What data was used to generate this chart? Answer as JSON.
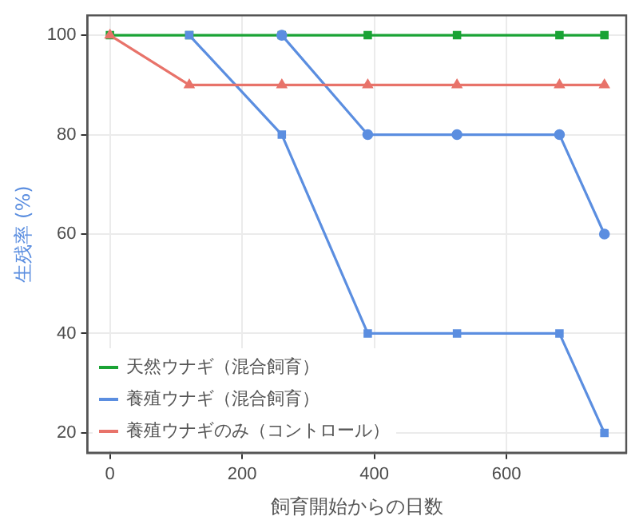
{
  "chart_data": {
    "type": "line",
    "xlabel": "飼育開始からの日数",
    "ylabel": "生残率 (%)",
    "xlim": [
      -34,
      781
    ],
    "xticks": [
      0,
      200,
      400,
      600
    ],
    "ylim": [
      16,
      104
    ],
    "yticks": [
      20,
      40,
      60,
      80,
      100
    ],
    "grid": true,
    "legend": "bottom left",
    "series": [
      {
        "name": "天然ウナギ（混合飼育）",
        "color": "#1aa335",
        "marker": "square",
        "x": [
          0,
          120,
          260,
          390,
          525,
          680,
          748
        ],
        "values": [
          100,
          100,
          100,
          100,
          100,
          100,
          100
        ]
      },
      {
        "name": "養殖ウナギ（混合飼育）",
        "color": "#5b8ee0",
        "marker": "square",
        "x": [
          120,
          260,
          390,
          525,
          680,
          748
        ],
        "values": [
          100,
          80,
          40,
          40,
          40,
          20
        ]
      },
      {
        "color": "#5b8ee0",
        "marker": "circle",
        "x": [
          260,
          390,
          525,
          680,
          748
        ],
        "values": [
          100,
          80,
          80,
          80,
          60
        ]
      },
      {
        "name": "養殖ウナギのみ（コントロール）",
        "color": "#e8736a",
        "marker": "triangle",
        "x": [
          0,
          120,
          260,
          390,
          525,
          680,
          748
        ],
        "values": [
          100,
          90,
          90,
          90,
          90,
          90,
          90
        ]
      }
    ]
  }
}
